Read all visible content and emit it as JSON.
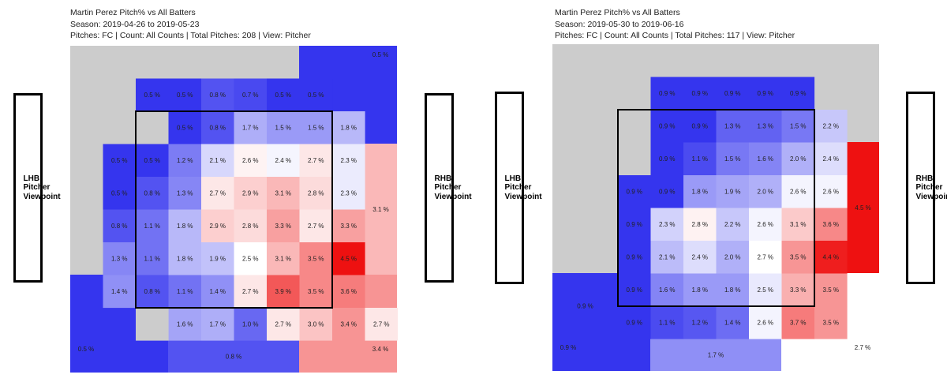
{
  "chart_data": [
    {
      "type": "heatmap",
      "title": "Martin Perez Pitch% vs All Batters",
      "season": "Season: 2019-04-26 to 2019-05-23",
      "info": "Pitches: FC | Count: All Counts | Total Pitches: 208 | View: Pitcher",
      "left_label": "LHB Pitcher Viewpoint",
      "right_label": "RHB Pitcher Viewpoint",
      "value_range": [
        0.5,
        4.5
      ],
      "colors": {
        "low": "#3535ee",
        "mid": "#ffffff",
        "high": "#ee1111",
        "empty": "#cccccc"
      },
      "inner_cells": [
        {
          "row": 0,
          "col": 1,
          "value": 0.5,
          "label": "0.5 %"
        },
        {
          "row": 0,
          "col": 2,
          "value": 0.5,
          "label": "0.5 %"
        },
        {
          "row": 0,
          "col": 3,
          "value": 0.8,
          "label": "0.8 %"
        },
        {
          "row": 0,
          "col": 4,
          "value": 0.7,
          "label": "0.7 %"
        },
        {
          "row": 0,
          "col": 5,
          "value": 0.5,
          "label": "0.5 %"
        },
        {
          "row": 0,
          "col": 6,
          "value": 0.5,
          "label": "0.5 %"
        },
        {
          "row": 1,
          "col": 2,
          "value": 0.5,
          "label": "0.5 %"
        },
        {
          "row": 1,
          "col": 3,
          "value": 0.8,
          "label": "0.8 %"
        },
        {
          "row": 1,
          "col": 4,
          "value": 1.7,
          "label": "1.7 %"
        },
        {
          "row": 1,
          "col": 5,
          "value": 1.5,
          "label": "1.5 %"
        },
        {
          "row": 1,
          "col": 6,
          "value": 1.5,
          "label": "1.5 %"
        },
        {
          "row": 1,
          "col": 7,
          "value": 1.8,
          "label": "1.8 %"
        },
        {
          "row": 2,
          "col": 0,
          "value": 0.5,
          "label": "0.5 %"
        },
        {
          "row": 2,
          "col": 1,
          "value": 0.5,
          "label": "0.5 %"
        },
        {
          "row": 2,
          "col": 2,
          "value": 1.2,
          "label": "1.2 %"
        },
        {
          "row": 2,
          "col": 3,
          "value": 2.1,
          "label": "2.1 %"
        },
        {
          "row": 2,
          "col": 4,
          "value": 2.6,
          "label": "2.6 %"
        },
        {
          "row": 2,
          "col": 5,
          "value": 2.4,
          "label": "2.4 %"
        },
        {
          "row": 2,
          "col": 6,
          "value": 2.7,
          "label": "2.7 %"
        },
        {
          "row": 2,
          "col": 7,
          "value": 2.3,
          "label": "2.3 %"
        },
        {
          "row": 3,
          "col": 0,
          "value": 0.5,
          "label": "0.5 %"
        },
        {
          "row": 3,
          "col": 1,
          "value": 0.8,
          "label": "0.8 %"
        },
        {
          "row": 3,
          "col": 2,
          "value": 1.3,
          "label": "1.3 %"
        },
        {
          "row": 3,
          "col": 3,
          "value": 2.7,
          "label": "2.7 %"
        },
        {
          "row": 3,
          "col": 4,
          "value": 2.9,
          "label": "2.9 %"
        },
        {
          "row": 3,
          "col": 5,
          "value": 3.1,
          "label": "3.1 %"
        },
        {
          "row": 3,
          "col": 6,
          "value": 2.8,
          "label": "2.8 %"
        },
        {
          "row": 3,
          "col": 7,
          "value": 2.3,
          "label": "2.3 %"
        },
        {
          "row": 4,
          "col": 0,
          "value": 0.8,
          "label": "0.8 %"
        },
        {
          "row": 4,
          "col": 1,
          "value": 1.1,
          "label": "1.1 %"
        },
        {
          "row": 4,
          "col": 2,
          "value": 1.8,
          "label": "1.8 %"
        },
        {
          "row": 4,
          "col": 3,
          "value": 2.9,
          "label": "2.9 %"
        },
        {
          "row": 4,
          "col": 4,
          "value": 2.8,
          "label": "2.8 %"
        },
        {
          "row": 4,
          "col": 5,
          "value": 3.3,
          "label": "3.3 %"
        },
        {
          "row": 4,
          "col": 6,
          "value": 2.7,
          "label": "2.7 %"
        },
        {
          "row": 4,
          "col": 7,
          "value": 3.3,
          "label": "3.3 %"
        },
        {
          "row": 5,
          "col": 0,
          "value": 1.3,
          "label": "1.3 %"
        },
        {
          "row": 5,
          "col": 1,
          "value": 1.1,
          "label": "1.1 %"
        },
        {
          "row": 5,
          "col": 2,
          "value": 1.8,
          "label": "1.8 %"
        },
        {
          "row": 5,
          "col": 3,
          "value": 1.9,
          "label": "1.9 %"
        },
        {
          "row": 5,
          "col": 4,
          "value": 2.5,
          "label": "2.5 %"
        },
        {
          "row": 5,
          "col": 5,
          "value": 3.1,
          "label": "3.1 %"
        },
        {
          "row": 5,
          "col": 6,
          "value": 3.5,
          "label": "3.5 %"
        },
        {
          "row": 5,
          "col": 7,
          "value": 4.5,
          "label": "4.5 %"
        },
        {
          "row": 6,
          "col": 0,
          "value": 1.4,
          "label": "1.4 %"
        },
        {
          "row": 6,
          "col": 1,
          "value": 0.8,
          "label": "0.8 %"
        },
        {
          "row": 6,
          "col": 2,
          "value": 1.1,
          "label": "1.1 %"
        },
        {
          "row": 6,
          "col": 3,
          "value": 1.4,
          "label": "1.4 %"
        },
        {
          "row": 6,
          "col": 4,
          "value": 2.7,
          "label": "2.7 %"
        },
        {
          "row": 6,
          "col": 5,
          "value": 3.9,
          "label": "3.9 %"
        },
        {
          "row": 6,
          "col": 6,
          "value": 3.5,
          "label": "3.5 %"
        },
        {
          "row": 6,
          "col": 7,
          "value": 3.6,
          "label": "3.6 %"
        },
        {
          "row": 7,
          "col": 2,
          "value": 1.6,
          "label": "1.6 %"
        },
        {
          "row": 7,
          "col": 3,
          "value": 1.7,
          "label": "1.7 %"
        },
        {
          "row": 7,
          "col": 4,
          "value": 1.0,
          "label": "1.0 %"
        },
        {
          "row": 7,
          "col": 5,
          "value": 2.7,
          "label": "2.7 %"
        },
        {
          "row": 7,
          "col": 6,
          "value": 3.0,
          "label": "3.0 %"
        },
        {
          "row": 7,
          "col": 7,
          "value": 3.4,
          "label": "3.4 %"
        },
        {
          "row": 7,
          "col": 8,
          "value": 2.7,
          "label": "2.7 %"
        }
      ],
      "outer_zones": [
        {
          "zone": "upper-left",
          "value": null,
          "label": ""
        },
        {
          "zone": "upper-right",
          "value": 0.5,
          "label": "0.5 %"
        },
        {
          "zone": "right-middle",
          "value": 3.1,
          "label": "3.1 %"
        },
        {
          "zone": "lower-left",
          "value": 0.5,
          "label": "0.5 %"
        },
        {
          "zone": "bottom-middle",
          "value": 0.8,
          "label": "0.8 %"
        },
        {
          "zone": "lower-right",
          "value": 3.4,
          "label": "3.4 %"
        }
      ],
      "strike_zone": {
        "rows": [
          1,
          6
        ],
        "cols": [
          1,
          6
        ]
      }
    },
    {
      "type": "heatmap",
      "title": "Martin Perez Pitch% vs All Batters",
      "season": "Season: 2019-05-30 to 2019-06-16",
      "info": "Pitches: FC | Count: All Counts | Total Pitches: 117 | View: Pitcher",
      "left_label": "LHB Pitcher Viewpoint",
      "right_label": "RHB Pitcher Viewpoint",
      "value_range": [
        0.9,
        4.5
      ],
      "colors": {
        "low": "#3535ee",
        "mid": "#ffffff",
        "high": "#ee1111",
        "empty": "#cccccc"
      },
      "inner_cells": [
        {
          "row": 0,
          "col": 1,
          "value": 0.9,
          "label": "0.9 %"
        },
        {
          "row": 0,
          "col": 2,
          "value": 0.9,
          "label": "0.9 %"
        },
        {
          "row": 0,
          "col": 3,
          "value": 0.9,
          "label": "0.9 %"
        },
        {
          "row": 0,
          "col": 4,
          "value": 0.9,
          "label": "0.9 %"
        },
        {
          "row": 0,
          "col": 5,
          "value": 0.9,
          "label": "0.9 %"
        },
        {
          "row": 1,
          "col": 1,
          "value": 0.9,
          "label": "0.9 %"
        },
        {
          "row": 1,
          "col": 2,
          "value": 0.9,
          "label": "0.9 %"
        },
        {
          "row": 1,
          "col": 3,
          "value": 1.3,
          "label": "1.3 %"
        },
        {
          "row": 1,
          "col": 4,
          "value": 1.3,
          "label": "1.3 %"
        },
        {
          "row": 1,
          "col": 5,
          "value": 1.5,
          "label": "1.5 %"
        },
        {
          "row": 1,
          "col": 6,
          "value": 2.2,
          "label": "2.2 %"
        },
        {
          "row": 2,
          "col": 1,
          "value": 0.9,
          "label": "0.9 %"
        },
        {
          "row": 2,
          "col": 2,
          "value": 1.1,
          "label": "1.1 %"
        },
        {
          "row": 2,
          "col": 3,
          "value": 1.5,
          "label": "1.5 %"
        },
        {
          "row": 2,
          "col": 4,
          "value": 1.6,
          "label": "1.6 %"
        },
        {
          "row": 2,
          "col": 5,
          "value": 2.0,
          "label": "2.0 %"
        },
        {
          "row": 2,
          "col": 6,
          "value": 2.4,
          "label": "2.4 %"
        },
        {
          "row": 3,
          "col": 0,
          "value": 0.9,
          "label": "0.9 %"
        },
        {
          "row": 3,
          "col": 1,
          "value": 0.9,
          "label": "0.9 %"
        },
        {
          "row": 3,
          "col": 2,
          "value": 1.8,
          "label": "1.8 %"
        },
        {
          "row": 3,
          "col": 3,
          "value": 1.9,
          "label": "1.9 %"
        },
        {
          "row": 3,
          "col": 4,
          "value": 2.0,
          "label": "2.0 %"
        },
        {
          "row": 3,
          "col": 5,
          "value": 2.6,
          "label": "2.6 %"
        },
        {
          "row": 3,
          "col": 6,
          "value": 2.6,
          "label": "2.6 %"
        },
        {
          "row": 4,
          "col": 0,
          "value": 0.9,
          "label": "0.9 %"
        },
        {
          "row": 4,
          "col": 1,
          "value": 2.3,
          "label": "2.3 %"
        },
        {
          "row": 4,
          "col": 2,
          "value": 2.8,
          "label": "2.8 %"
        },
        {
          "row": 4,
          "col": 3,
          "value": 2.2,
          "label": "2.2 %"
        },
        {
          "row": 4,
          "col": 4,
          "value": 2.6,
          "label": "2.6 %"
        },
        {
          "row": 4,
          "col": 5,
          "value": 3.1,
          "label": "3.1 %"
        },
        {
          "row": 4,
          "col": 6,
          "value": 3.6,
          "label": "3.6 %"
        },
        {
          "row": 5,
          "col": 0,
          "value": 0.9,
          "label": "0.9 %"
        },
        {
          "row": 5,
          "col": 1,
          "value": 2.1,
          "label": "2.1 %"
        },
        {
          "row": 5,
          "col": 2,
          "value": 2.4,
          "label": "2.4 %"
        },
        {
          "row": 5,
          "col": 3,
          "value": 2.0,
          "label": "2.0 %"
        },
        {
          "row": 5,
          "col": 4,
          "value": 2.7,
          "label": "2.7 %"
        },
        {
          "row": 5,
          "col": 5,
          "value": 3.5,
          "label": "3.5 %"
        },
        {
          "row": 5,
          "col": 6,
          "value": 4.4,
          "label": "4.4 %"
        },
        {
          "row": 6,
          "col": 0,
          "value": 0.9,
          "label": "0.9 %"
        },
        {
          "row": 6,
          "col": 1,
          "value": 1.6,
          "label": "1.6 %"
        },
        {
          "row": 6,
          "col": 2,
          "value": 1.8,
          "label": "1.8 %"
        },
        {
          "row": 6,
          "col": 3,
          "value": 1.8,
          "label": "1.8 %"
        },
        {
          "row": 6,
          "col": 4,
          "value": 2.5,
          "label": "2.5 %"
        },
        {
          "row": 6,
          "col": 5,
          "value": 3.3,
          "label": "3.3 %"
        },
        {
          "row": 6,
          "col": 6,
          "value": 3.5,
          "label": "3.5 %"
        },
        {
          "row": 7,
          "col": 0,
          "value": 0.9,
          "label": "0.9 %"
        },
        {
          "row": 7,
          "col": 1,
          "value": 1.1,
          "label": "1.1 %"
        },
        {
          "row": 7,
          "col": 2,
          "value": 1.2,
          "label": "1.2 %"
        },
        {
          "row": 7,
          "col": 3,
          "value": 1.4,
          "label": "1.4 %"
        },
        {
          "row": 7,
          "col": 4,
          "value": 2.6,
          "label": "2.6 %"
        },
        {
          "row": 7,
          "col": 5,
          "value": 3.7,
          "label": "3.7 %"
        },
        {
          "row": 7,
          "col": 6,
          "value": 3.5,
          "label": "3.5 %"
        }
      ],
      "outer_zones": [
        {
          "zone": "upper-left",
          "value": null,
          "label": ""
        },
        {
          "zone": "upper-right",
          "value": null,
          "label": ""
        },
        {
          "zone": "right-middle",
          "value": 4.5,
          "label": "4.5 %"
        },
        {
          "zone": "lower-left",
          "value": 0.9,
          "label": "0.9 %"
        },
        {
          "zone": "left-low",
          "value": 0.9,
          "label": "0.9 %"
        },
        {
          "zone": "bottom-middle",
          "value": 1.7,
          "label": "1.7 %"
        },
        {
          "zone": "lower-right",
          "value": 2.7,
          "label": "2.7 %"
        }
      ],
      "strike_zone": {
        "rows": [
          1,
          6
        ],
        "cols": [
          0,
          5
        ]
      }
    }
  ]
}
